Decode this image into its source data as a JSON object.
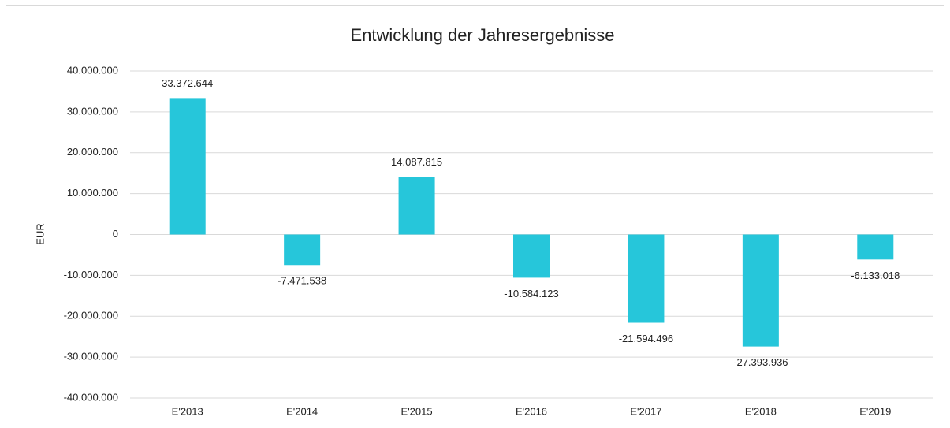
{
  "chart_data": {
    "type": "bar",
    "title": "Entwicklung der Jahresergebnisse",
    "y_label": "EUR",
    "categories": [
      "E'2013",
      "E'2014",
      "E'2015",
      "E'2016",
      "E'2017",
      "E'2018",
      "E'2019"
    ],
    "values": [
      33372644,
      -7471538,
      14087815,
      -10584123,
      -21594496,
      -27393936,
      -6133018
    ],
    "value_labels": [
      "33.372.644",
      "-7.471.538",
      "14.087.815",
      "-10.584.123",
      "-21.594.496",
      "-27.393.936",
      "-6.133.018"
    ],
    "color": "#26c6da",
    "ylim": [
      -40000000,
      40000000
    ],
    "yticks": [
      {
        "value": -40000000,
        "label": "-40.000.000"
      },
      {
        "value": -30000000,
        "label": "-30.000.000"
      },
      {
        "value": -20000000,
        "label": "-20.000.000"
      },
      {
        "value": -10000000,
        "label": "-10.000.000"
      },
      0,
      {
        "value": 10000000,
        "label": "10.000.000"
      },
      {
        "value": 20000000,
        "label": "20.000.000"
      },
      {
        "value": 30000000,
        "label": "30.000.000"
      },
      {
        "value": 40000000,
        "label": "40.000.000"
      }
    ],
    "grid": true
  }
}
